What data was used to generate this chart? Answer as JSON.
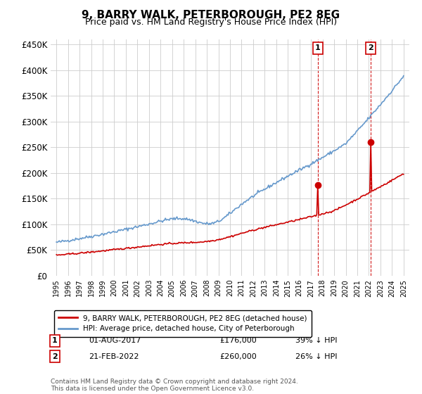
{
  "title": "9, BARRY WALK, PETERBOROUGH, PE2 8EG",
  "subtitle": "Price paid vs. HM Land Registry's House Price Index (HPI)",
  "yticks": [
    0,
    50000,
    100000,
    150000,
    200000,
    250000,
    300000,
    350000,
    400000,
    450000
  ],
  "ytick_labels": [
    "£0",
    "£50K",
    "£100K",
    "£150K",
    "£200K",
    "£250K",
    "£300K",
    "£350K",
    "£400K",
    "£450K"
  ],
  "hpi_color": "#6699cc",
  "price_color": "#cc0000",
  "vline_color": "#cc0000",
  "transaction1_price": 176000,
  "transaction2_price": 260000,
  "footer": "Contains HM Land Registry data © Crown copyright and database right 2024.\nThis data is licensed under the Open Government Licence v3.0.",
  "legend_line1": "9, BARRY WALK, PETERBOROUGH, PE2 8EG (detached house)",
  "legend_line2": "HPI: Average price, detached house, City of Peterborough",
  "table_row1": [
    "1",
    "01-AUG-2017",
    "£176,000",
    "39% ↓ HPI"
  ],
  "table_row2": [
    "2",
    "21-FEB-2022",
    "£260,000",
    "26% ↓ HPI"
  ],
  "x_start_year": 1995,
  "x_end_year": 2025
}
